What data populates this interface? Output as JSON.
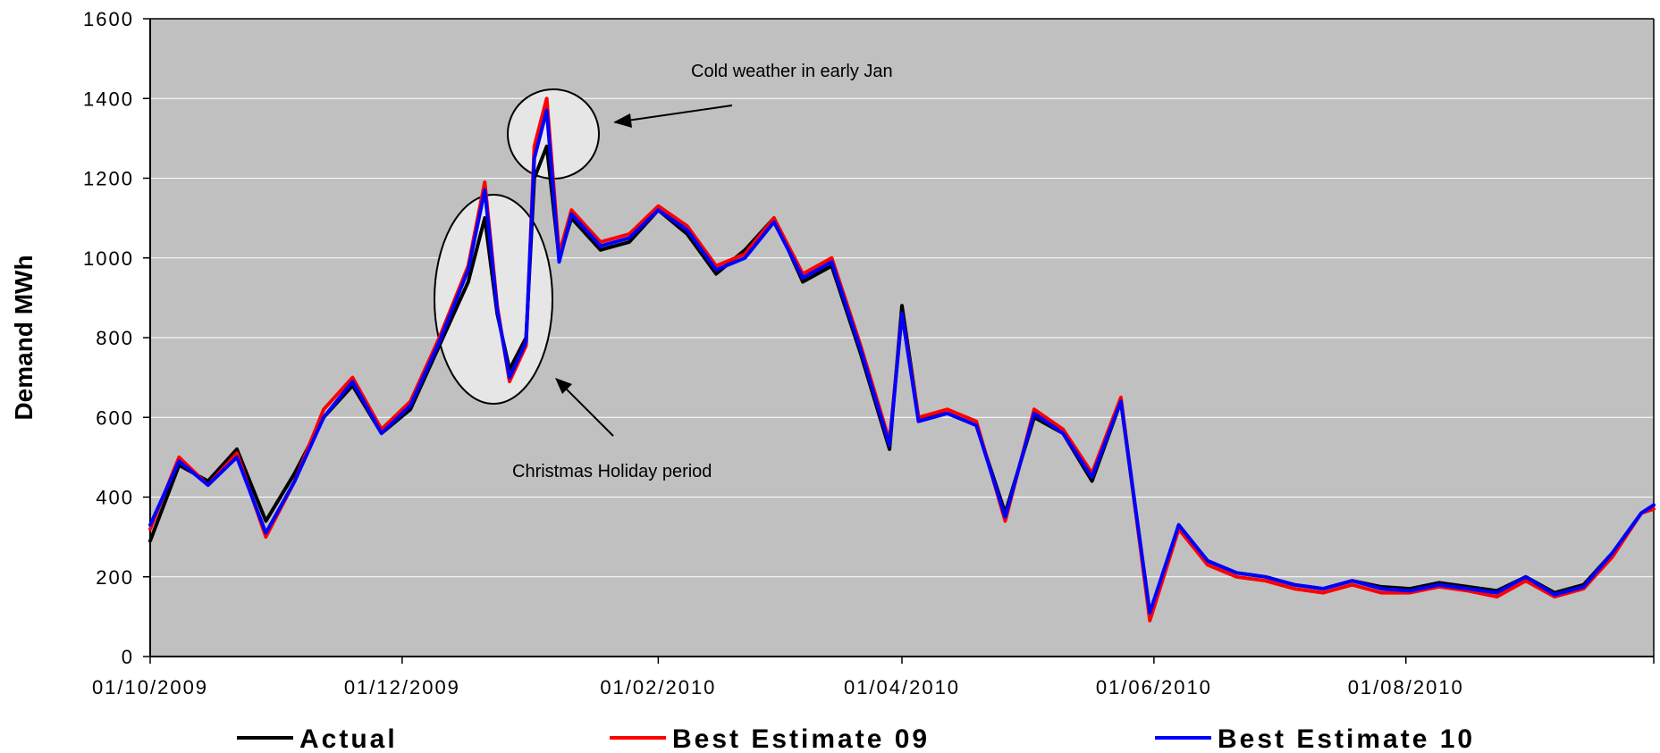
{
  "chart_data": {
    "type": "line",
    "xlabel": "",
    "ylabel": "Demand MWh",
    "ylim": [
      0,
      1600
    ],
    "y_ticks": [
      "0",
      "200",
      "400",
      "600",
      "800",
      "1000",
      "1200",
      "1400",
      "1600"
    ],
    "x_tick_labels": [
      "01/10/2009",
      "01/12/2009",
      "01/02/2010",
      "01/04/2010",
      "01/06/2010",
      "01/08/2010"
    ],
    "x_range": [
      "2009-10-01",
      "2010-09-30"
    ],
    "grid": "horizontal",
    "background": "#c0c0c0",
    "legend_position": "bottom",
    "annotations": [
      {
        "text": "Cold weather in early Jan",
        "points_to": "2010-01-02"
      },
      {
        "text": "Christmas Holiday period",
        "points_to": "2009-12-25"
      }
    ],
    "series": [
      {
        "name": "Actual",
        "color": "#000000",
        "x": [
          "2009-10-01",
          "2009-10-08",
          "2009-10-15",
          "2009-10-22",
          "2009-10-29",
          "2009-11-05",
          "2009-11-12",
          "2009-11-19",
          "2009-11-26",
          "2009-12-03",
          "2009-12-10",
          "2009-12-17",
          "2009-12-21",
          "2009-12-24",
          "2009-12-27",
          "2009-12-31",
          "2010-01-02",
          "2010-01-05",
          "2010-01-08",
          "2010-01-11",
          "2010-01-18",
          "2010-01-25",
          "2010-02-01",
          "2010-02-08",
          "2010-02-15",
          "2010-02-22",
          "2010-03-01",
          "2010-03-08",
          "2010-03-15",
          "2010-03-22",
          "2010-03-29",
          "2010-04-01",
          "2010-04-05",
          "2010-04-12",
          "2010-04-19",
          "2010-04-26",
          "2010-05-03",
          "2010-05-10",
          "2010-05-17",
          "2010-05-24",
          "2010-05-31",
          "2010-06-07",
          "2010-06-14",
          "2010-06-21",
          "2010-06-28",
          "2010-07-05",
          "2010-07-12",
          "2010-07-19",
          "2010-07-26",
          "2010-08-02",
          "2010-08-09",
          "2010-08-16",
          "2010-08-23",
          "2010-08-30",
          "2010-09-06",
          "2010-09-13",
          "2010-09-20",
          "2010-09-27",
          "2010-09-30"
        ],
        "values": [
          290,
          480,
          440,
          520,
          340,
          460,
          600,
          680,
          560,
          620,
          780,
          940,
          1100,
          860,
          720,
          800,
          1200,
          1280,
          1000,
          1100,
          1020,
          1040,
          1120,
          1060,
          960,
          1020,
          1100,
          940,
          980,
          760,
          520,
          880,
          600,
          610,
          580,
          360,
          600,
          560,
          440,
          640,
          100,
          330,
          240,
          210,
          200,
          180,
          170,
          190,
          175,
          170,
          185,
          175,
          165,
          200,
          160,
          180,
          260,
          360,
          380
        ]
      },
      {
        "name": "Best Estimate 09",
        "color": "#ff0000",
        "x": [
          "2009-10-01",
          "2009-10-08",
          "2009-10-15",
          "2009-10-22",
          "2009-10-29",
          "2009-11-05",
          "2009-11-12",
          "2009-11-19",
          "2009-11-26",
          "2009-12-03",
          "2009-12-10",
          "2009-12-17",
          "2009-12-21",
          "2009-12-24",
          "2009-12-27",
          "2009-12-31",
          "2010-01-02",
          "2010-01-05",
          "2010-01-08",
          "2010-01-11",
          "2010-01-18",
          "2010-01-25",
          "2010-02-01",
          "2010-02-08",
          "2010-02-15",
          "2010-02-22",
          "2010-03-01",
          "2010-03-08",
          "2010-03-15",
          "2010-03-22",
          "2010-03-29",
          "2010-04-01",
          "2010-04-05",
          "2010-04-12",
          "2010-04-19",
          "2010-04-26",
          "2010-05-03",
          "2010-05-10",
          "2010-05-17",
          "2010-05-24",
          "2010-05-31",
          "2010-06-07",
          "2010-06-14",
          "2010-06-21",
          "2010-06-28",
          "2010-07-05",
          "2010-07-12",
          "2010-07-19",
          "2010-07-26",
          "2010-08-02",
          "2010-08-09",
          "2010-08-16",
          "2010-08-23",
          "2010-08-30",
          "2010-09-06",
          "2010-09-13",
          "2010-09-20",
          "2010-09-27",
          "2010-09-30"
        ],
        "values": [
          320,
          500,
          430,
          510,
          300,
          440,
          620,
          700,
          570,
          640,
          800,
          980,
          1190,
          880,
          690,
          780,
          1280,
          1400,
          1010,
          1120,
          1040,
          1060,
          1130,
          1080,
          980,
          1010,
          1100,
          960,
          1000,
          780,
          540,
          860,
          600,
          620,
          590,
          340,
          620,
          570,
          460,
          650,
          90,
          320,
          230,
          200,
          190,
          170,
          160,
          180,
          160,
          160,
          175,
          165,
          150,
          190,
          150,
          170,
          250,
          360,
          370
        ]
      },
      {
        "name": "Best Estimate 10",
        "color": "#0000ff",
        "x": [
          "2009-10-01",
          "2009-10-08",
          "2009-10-15",
          "2009-10-22",
          "2009-10-29",
          "2009-11-05",
          "2009-11-12",
          "2009-11-19",
          "2009-11-26",
          "2009-12-03",
          "2009-12-10",
          "2009-12-17",
          "2009-12-21",
          "2009-12-24",
          "2009-12-27",
          "2009-12-31",
          "2010-01-02",
          "2010-01-05",
          "2010-01-08",
          "2010-01-11",
          "2010-01-18",
          "2010-01-25",
          "2010-02-01",
          "2010-02-08",
          "2010-02-15",
          "2010-02-22",
          "2010-03-01",
          "2010-03-08",
          "2010-03-15",
          "2010-03-22",
          "2010-03-29",
          "2010-04-01",
          "2010-04-05",
          "2010-04-12",
          "2010-04-19",
          "2010-04-26",
          "2010-05-03",
          "2010-05-10",
          "2010-05-17",
          "2010-05-24",
          "2010-05-31",
          "2010-06-07",
          "2010-06-14",
          "2010-06-21",
          "2010-06-28",
          "2010-07-05",
          "2010-07-12",
          "2010-07-19",
          "2010-07-26",
          "2010-08-02",
          "2010-08-09",
          "2010-08-16",
          "2010-08-23",
          "2010-08-30",
          "2010-09-06",
          "2010-09-13",
          "2010-09-20",
          "2010-09-27",
          "2010-09-30"
        ],
        "values": [
          330,
          490,
          430,
          500,
          310,
          440,
          600,
          690,
          560,
          630,
          790,
          970,
          1170,
          870,
          700,
          790,
          1250,
          1370,
          990,
          1110,
          1030,
          1050,
          1120,
          1070,
          970,
          1000,
          1090,
          950,
          990,
          770,
          530,
          860,
          590,
          610,
          580,
          350,
          610,
          560,
          450,
          640,
          110,
          330,
          240,
          210,
          200,
          180,
          170,
          190,
          170,
          165,
          180,
          170,
          160,
          200,
          155,
          175,
          260,
          360,
          380
        ]
      }
    ]
  }
}
